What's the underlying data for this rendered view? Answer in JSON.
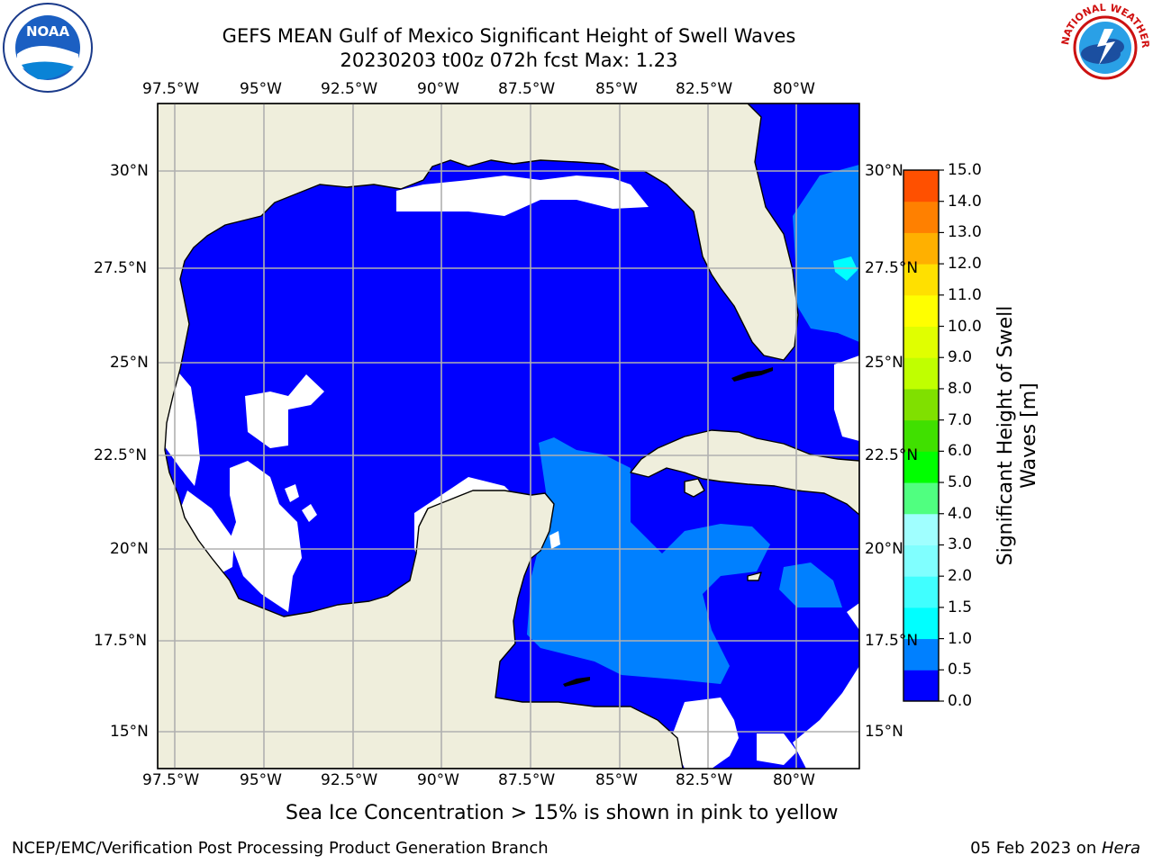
{
  "header": {
    "title_line1": "GEFS MEAN Gulf of Mexico Significant Height of Swell Waves",
    "title_line2": "20230203 t00z 072h fcst   Max: 1.23"
  },
  "logos": {
    "left": "NOAA",
    "right": "NATIONAL WEATHER SERVICE"
  },
  "map": {
    "lon_ticks": [
      "97.5°W",
      "95°W",
      "92.5°W",
      "90°W",
      "87.5°W",
      "85°W",
      "82.5°W",
      "80°W"
    ],
    "lat_ticks": [
      "30°N",
      "27.5°N",
      "25°N",
      "22.5°N",
      "20°N",
      "17.5°N",
      "15°N"
    ],
    "lon_range": [
      -98.25,
      -78.5
    ],
    "lat_range": [
      14.0,
      31.8
    ]
  },
  "colorbar": {
    "label": "Significant Height of Swell Waves [m]",
    "label_line1": "Significant Height of Swell",
    "label_line2": "Waves [m]",
    "ticks": [
      "15.0",
      "14.0",
      "13.0",
      "12.0",
      "11.0",
      "10.0",
      "9.0",
      "8.0",
      "7.0",
      "6.0",
      "5.0",
      "4.0",
      "3.0",
      "2.0",
      "1.5",
      "1.0",
      "0.5",
      "0.0"
    ],
    "colors": [
      "#0000ff",
      "#0080ff",
      "#00ffff",
      "#40ffff",
      "#80ffff",
      "#a0ffff",
      "#50ff80",
      "#00ff00",
      "#40e000",
      "#80e000",
      "#c0ff00",
      "#e0ff00",
      "#ffff00",
      "#ffe000",
      "#ffb000",
      "#ff8000",
      "#ff5000",
      "#ff2000",
      "#ff0000"
    ]
  },
  "note": "Sea Ice Concentration > 15% is shown in pink to yellow",
  "footer": {
    "left": "NCEP/EMC/Verification Post Processing Product Generation Branch",
    "date": "05 Feb 2023 on ",
    "host": "Hera"
  }
}
